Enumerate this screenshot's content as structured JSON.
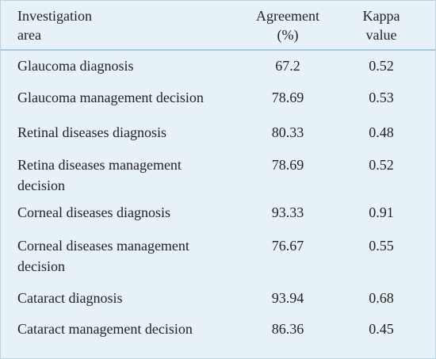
{
  "table": {
    "header": {
      "area_line1": "Investigation",
      "area_line2": "area",
      "agreement_line1": "Agreement",
      "agreement_line2": "(%)",
      "kappa_line1": "Kappa",
      "kappa_line2": "value"
    },
    "rows": [
      {
        "area": [
          "Glaucoma diagnosis"
        ],
        "agreement": "67.2",
        "kappa": "0.52"
      },
      {
        "area": [
          "Glaucoma management decision"
        ],
        "agreement": "78.69",
        "kappa": "0.53"
      },
      {
        "area": [
          "Retinal diseases diagnosis"
        ],
        "agreement": "80.33",
        "kappa": "0.48"
      },
      {
        "area": [
          "Retina diseases management",
          "decision"
        ],
        "agreement": "78.69",
        "kappa": "0.52"
      },
      {
        "area": [
          "Corneal diseases diagnosis"
        ],
        "agreement": "93.33",
        "kappa": "0.91"
      },
      {
        "area": [
          "Corneal diseases management",
          "decision"
        ],
        "agreement": "76.67",
        "kappa": "0.55"
      },
      {
        "area": [
          "Cataract diagnosis"
        ],
        "agreement": "93.94",
        "kappa": "0.68"
      },
      {
        "area": [
          "Cataract management decision"
        ],
        "agreement": "86.36",
        "kappa": "0.45"
      }
    ]
  }
}
